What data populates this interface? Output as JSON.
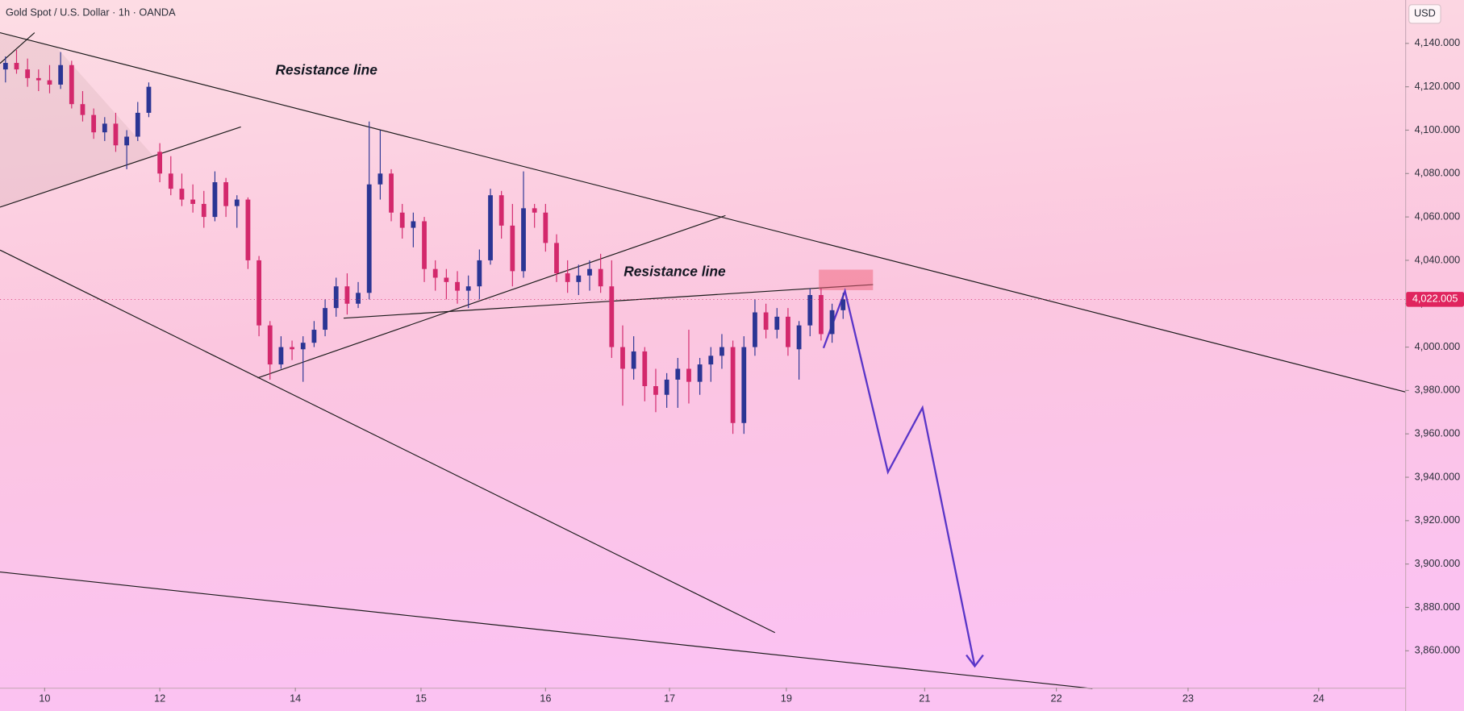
{
  "chart_data": {
    "type": "candlestick",
    "title": "Gold Spot / U.S. Dollar · 1h · OANDA",
    "currency": "USD",
    "up_color": "#2b3594",
    "down_color": "#d3286c",
    "xlim": [
      0,
      255
    ],
    "xticks": [
      {
        "value": 8.1,
        "label": "10"
      },
      {
        "value": 29,
        "label": "12"
      },
      {
        "value": 53.6,
        "label": "14"
      },
      {
        "value": 76.4,
        "label": "15"
      },
      {
        "value": 99,
        "label": "16"
      },
      {
        "value": 121.5,
        "label": "17"
      },
      {
        "value": 142.7,
        "label": "19"
      },
      {
        "value": 167.8,
        "label": "21"
      },
      {
        "value": 191.7,
        "label": "22"
      },
      {
        "value": 215.6,
        "label": "23"
      },
      {
        "value": 239.3,
        "label": "24"
      }
    ],
    "ylim": [
      3843,
      4160
    ],
    "yticks": [
      {
        "value": 4140,
        "label": "4,140.000"
      },
      {
        "value": 4120,
        "label": "4,120.000"
      },
      {
        "value": 4100,
        "label": "4,100.000"
      },
      {
        "value": 4080,
        "label": "4,080.000"
      },
      {
        "value": 4060,
        "label": "4,060.000"
      },
      {
        "value": 4040,
        "label": "4,040.000"
      },
      {
        "value": 4020,
        "label": "4,020.000"
      },
      {
        "value": 4000,
        "label": "4,000.000"
      },
      {
        "value": 3980,
        "label": "3,980.000"
      },
      {
        "value": 3960,
        "label": "3,960.000"
      },
      {
        "value": 3940,
        "label": "3,940.000"
      },
      {
        "value": 3920,
        "label": "3,920.000"
      },
      {
        "value": 3900,
        "label": "3,900.000"
      },
      {
        "value": 3880,
        "label": "3,880.000"
      },
      {
        "value": 3860,
        "label": "3,860.000"
      }
    ],
    "last_price": {
      "value": 4022.005,
      "label": "4,022.005"
    },
    "annotations": [
      "Resistance line",
      "Resistance line"
    ],
    "x": [
      1,
      3,
      5,
      7,
      9,
      11,
      13,
      15,
      17,
      19,
      21,
      23,
      25,
      27,
      29,
      31,
      33,
      35,
      37,
      39,
      41,
      43,
      45,
      47,
      49,
      51,
      53,
      55,
      57,
      59,
      61,
      63,
      65,
      67,
      69,
      71,
      73,
      75,
      77,
      79,
      81,
      83,
      85,
      87,
      89,
      91,
      93,
      95,
      97,
      99,
      101,
      103,
      105,
      107,
      109,
      111,
      113,
      115,
      117,
      119,
      121,
      123,
      125,
      127,
      129,
      131,
      133,
      135,
      137,
      139,
      141,
      143,
      145,
      147,
      149,
      151,
      153
    ],
    "open": [
      4128,
      4131,
      4128,
      4124,
      4123,
      4121,
      4130,
      4112,
      4107,
      4099,
      4103,
      4093,
      4097,
      4108,
      4090,
      4080,
      4073,
      4068,
      4066,
      4060,
      4076,
      4065,
      4068,
      4040,
      4010,
      3992,
      4000,
      3999,
      4002,
      4008,
      4018,
      4028,
      4020,
      4025,
      4075,
      4080,
      4062,
      4055,
      4058,
      4036,
      4032,
      4030,
      4026,
      4028,
      4040,
      4070,
      4056,
      4035,
      4064,
      4062,
      4048,
      4034,
      4030,
      4033,
      4036,
      4028,
      4000,
      3990,
      3998,
      3982,
      3978,
      3985,
      3990,
      3984,
      3992,
      3996,
      4000,
      3965,
      4000,
      4016,
      4008,
      4014,
      3999,
      4010,
      4024,
      4006,
      4017
    ],
    "high": [
      4134,
      4137,
      4133,
      4128,
      4130,
      4136,
      4132,
      4118,
      4110,
      4106,
      4108,
      4100,
      4113,
      4122,
      4094,
      4088,
      4080,
      4075,
      4072,
      4081,
      4078,
      4070,
      4069,
      4042,
      4012,
      4005,
      4003,
      4005,
      4012,
      4022,
      4032,
      4034,
      4030,
      4104,
      4100,
      4082,
      4066,
      4062,
      4060,
      4040,
      4036,
      4035,
      4033,
      4045,
      4073,
      4072,
      4066,
      4081,
      4066,
      4066,
      4052,
      4040,
      4038,
      4040,
      4043,
      4040,
      4010,
      4005,
      4000,
      3990,
      3988,
      3995,
      4008,
      3995,
      4000,
      4006,
      4003,
      4005,
      4022,
      4020,
      4018,
      4018,
      4012,
      4027,
      4027,
      4020,
      4025
    ],
    "low": [
      4122,
      4126,
      4120,
      4118,
      4117,
      4119,
      4110,
      4104,
      4096,
      4095,
      4090,
      4082,
      4095,
      4106,
      4076,
      4070,
      4065,
      4062,
      4055,
      4058,
      4060,
      4055,
      4036,
      4005,
      3985,
      3990,
      3994,
      3984,
      4000,
      4005,
      4014,
      4015,
      4018,
      4022,
      4068,
      4058,
      4050,
      4046,
      4030,
      4026,
      4022,
      4020,
      4018,
      4022,
      4038,
      4050,
      4028,
      4032,
      4055,
      4044,
      4030,
      4025,
      4024,
      4026,
      4025,
      3995,
      3973,
      3985,
      3975,
      3970,
      3972,
      3972,
      3974,
      3978,
      3984,
      3990,
      3960,
      3960,
      3996,
      4004,
      4004,
      3996,
      3985,
      4005,
      4003,
      4002,
      4013
    ],
    "close": [
      4131,
      4128,
      4124,
      4123,
      4121,
      4130,
      4112,
      4107,
      4099,
      4103,
      4093,
      4097,
      4108,
      4120,
      4080,
      4073,
      4068,
      4066,
      4060,
      4076,
      4065,
      4068,
      4040,
      4010,
      3992,
      4000,
      3999,
      4002,
      4008,
      4018,
      4028,
      4020,
      4025,
      4075,
      4080,
      4062,
      4055,
      4058,
      4036,
      4032,
      4030,
      4026,
      4028,
      4040,
      4070,
      4056,
      4035,
      4064,
      4062,
      4048,
      4034,
      4030,
      4033,
      4036,
      4028,
      4000,
      3990,
      3998,
      3982,
      3978,
      3985,
      3990,
      3984,
      3992,
      3996,
      4000,
      3965,
      4000,
      4016,
      4008,
      4014,
      4000,
      4010,
      4024,
      4006,
      4017,
      4022
    ]
  }
}
